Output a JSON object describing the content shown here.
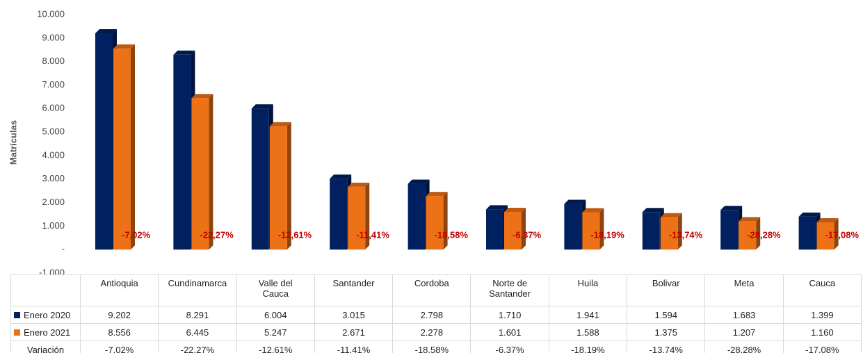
{
  "chart_data": {
    "type": "bar3d",
    "y_label": "Matrículas",
    "categories": [
      "Antioquia",
      "Cundinamarca",
      "Valle del Cauca",
      "Santander",
      "Cordoba",
      "Norte de Santander",
      "Huila",
      "Bolivar",
      "Meta",
      "Cauca"
    ],
    "series": [
      {
        "name": "Enero 2020",
        "color": "#002060",
        "values": [
          9202,
          8291,
          6004,
          3015,
          2798,
          1710,
          1941,
          1594,
          1683,
          1399
        ],
        "value_labels": [
          "9.202",
          "8.291",
          "6.004",
          "3.015",
          "2.798",
          "1.710",
          "1.941",
          "1.594",
          "1.683",
          "1.399"
        ]
      },
      {
        "name": "Enero 2021",
        "color": "#ed7117",
        "values": [
          8556,
          6445,
          5247,
          2671,
          2278,
          1601,
          1588,
          1375,
          1207,
          1160
        ],
        "value_labels": [
          "8.556",
          "6.445",
          "5.247",
          "2.671",
          "2.278",
          "1.601",
          "1.588",
          "1.375",
          "1.207",
          "1.160"
        ]
      }
    ],
    "variation": {
      "name": "Variación",
      "color": "#c00000",
      "values": [
        -7.02,
        -22.27,
        -12.61,
        -11.41,
        -18.58,
        -6.37,
        -18.19,
        -13.74,
        -28.28,
        -17.08
      ],
      "value_labels": [
        "-7,02%",
        "-22,27%",
        "-12,61%",
        "-11,41%",
        "-18,58%",
        "-6,37%",
        "-18,19%",
        "-13,74%",
        "-28,28%",
        "-17,08%"
      ]
    },
    "ylim": [
      -1000,
      10000
    ],
    "yticks": [
      {
        "value": -1000,
        "label": "-1.000"
      },
      {
        "value": 0,
        "label": "-"
      },
      {
        "value": 1000,
        "label": "1.000"
      },
      {
        "value": 2000,
        "label": "2.000"
      },
      {
        "value": 3000,
        "label": "3.000"
      },
      {
        "value": 4000,
        "label": "4.000"
      },
      {
        "value": 5000,
        "label": "5.000"
      },
      {
        "value": 6000,
        "label": "6.000"
      },
      {
        "value": 7000,
        "label": "7.000"
      },
      {
        "value": 8000,
        "label": "8.000"
      },
      {
        "value": 9000,
        "label": "9.000"
      },
      {
        "value": 10000,
        "label": "10.000"
      }
    ]
  }
}
